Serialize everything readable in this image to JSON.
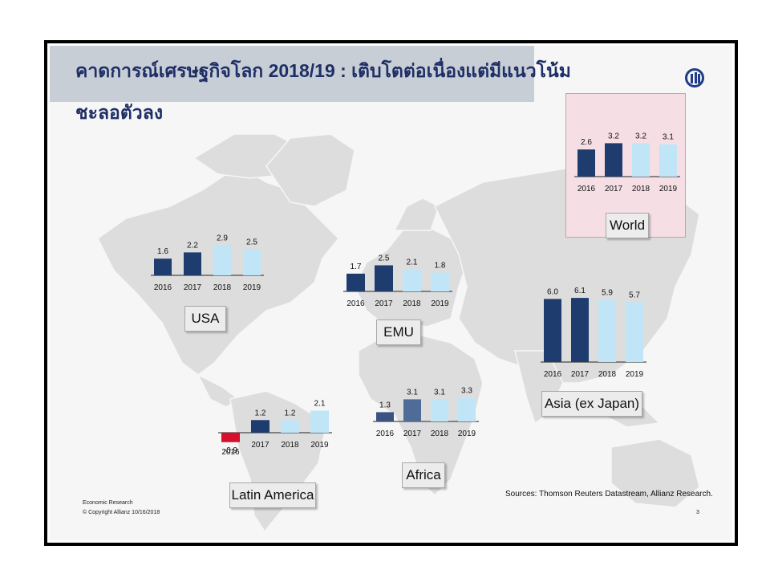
{
  "title": {
    "line1": "คาดการณ์เศรษฐกิจโลก 2018/19 : เติบโตต่อเนื่องแต่มีแนวโน้ม",
    "line2": "ชะลอตัวลง"
  },
  "footer": {
    "org": "Economic Research",
    "copyright": "© Copyright Allianz  10/16/2018",
    "sources": "Sources: Thomson Reuters Datastream, Allianz Research.",
    "page": "3"
  },
  "colors": {
    "actual": "#1f3c6e",
    "forecast": "#bfe5f7",
    "negative": "#d6102d",
    "africa_2016": "#3b5380",
    "africa_2017": "#4f6b97"
  },
  "chart_data": [
    {
      "type": "bar",
      "region": "World",
      "categories": [
        "2016",
        "2017",
        "2018",
        "2019"
      ],
      "values": [
        2.6,
        3.2,
        3.2,
        3.1
      ]
    },
    {
      "type": "bar",
      "region": "USA",
      "categories": [
        "2016",
        "2017",
        "2018",
        "2019"
      ],
      "values": [
        1.6,
        2.2,
        2.9,
        2.5
      ]
    },
    {
      "type": "bar",
      "region": "EMU",
      "categories": [
        "2016",
        "2017",
        "2018",
        "2019"
      ],
      "values": [
        1.7,
        2.5,
        2.1,
        1.8
      ]
    },
    {
      "type": "bar",
      "region": "Asia (ex Japan)",
      "categories": [
        "2016",
        "2017",
        "2018",
        "2019"
      ],
      "values": [
        6.0,
        6.1,
        5.9,
        5.7
      ]
    },
    {
      "type": "bar",
      "region": "Latin America",
      "categories": [
        "2016",
        "2017",
        "2018",
        "2019"
      ],
      "values": [
        -0.9,
        1.2,
        1.2,
        2.1
      ]
    },
    {
      "type": "bar",
      "region": "Africa",
      "categories": [
        "2016",
        "2017",
        "2018",
        "2019"
      ],
      "values": [
        1.3,
        3.1,
        3.1,
        3.3
      ]
    }
  ]
}
